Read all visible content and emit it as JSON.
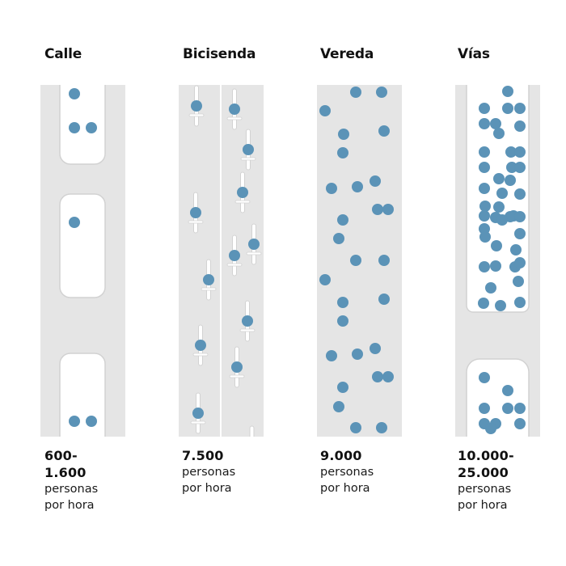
{
  "modes": [
    {
      "key": "calle",
      "title": "Calle",
      "capacity": "600-\n1.600",
      "unit": "personas por hora"
    },
    {
      "key": "bicisenda",
      "title": "Bicisenda",
      "capacity": "7.500",
      "unit": "personas por hora"
    },
    {
      "key": "vereda",
      "title": "Vereda",
      "capacity": "9.000",
      "unit": "personas por hora"
    },
    {
      "key": "vias",
      "title": "Vías",
      "capacity": "10.000-\n25.000",
      "unit": "personas por hora"
    }
  ],
  "colors": {
    "lane": "#e5e5e5",
    "vehicle": "#ffffff",
    "vehicle_border": "#d2d2d2",
    "person": "#5b93b7",
    "divider": "#ffffff"
  }
}
